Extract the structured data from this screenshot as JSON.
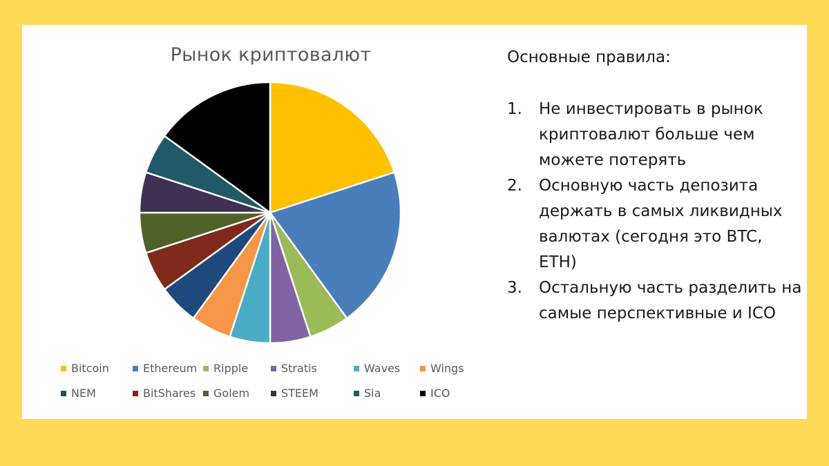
{
  "chart_data": {
    "type": "pie",
    "title": "Рынок криптовалют",
    "categories": [
      "Bitcoin",
      "Ethereum",
      "Ripple",
      "Stratis",
      "Waves",
      "Wings",
      "NEM",
      "BitShares",
      "Golem",
      "STEEM",
      "Sia",
      "ICO"
    ],
    "values": [
      20,
      20,
      5,
      5,
      5,
      5,
      5,
      5,
      5,
      5,
      5,
      15
    ],
    "colors": [
      "#FFC000",
      "#4A7EBB",
      "#9BBB59",
      "#8064A2",
      "#4BACC6",
      "#F79646",
      "#1F497D",
      "#7F2A1B",
      "#4F6228",
      "#3F3151",
      "#215968",
      "#000000"
    ],
    "legend_position": "bottom",
    "start_angle_deg": 0,
    "direction": "clockwise"
  },
  "rules": {
    "heading": "Основные правила:",
    "items": [
      {
        "num": "1.",
        "text": "Не инвестировать в рынок криптовалют больше чем можете потерять"
      },
      {
        "num": "2.",
        "text": "Основную часть депозита держать в самых ликвидных валютах (сегодня это BTC, ETH)"
      },
      {
        "num": "3.",
        "text": "Остальную часть разделить на самые перспективные и ICO"
      }
    ]
  }
}
